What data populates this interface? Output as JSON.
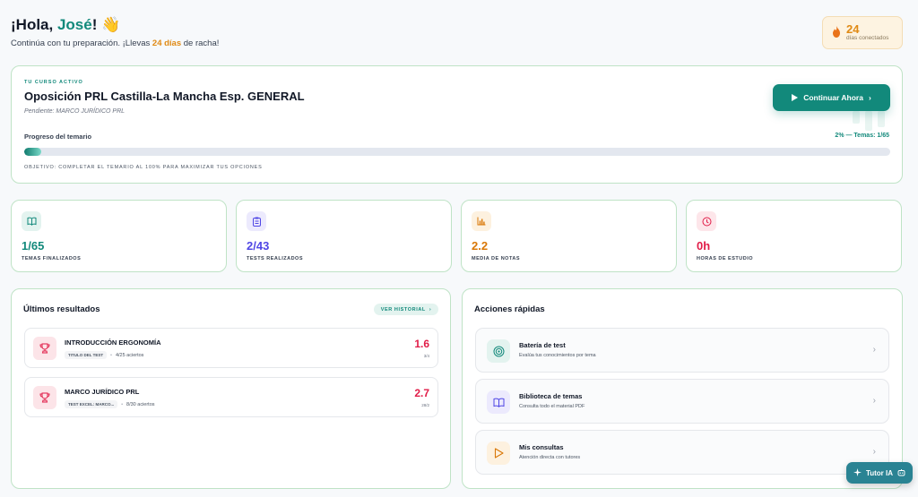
{
  "header": {
    "greeting_prefix": "¡Hola, ",
    "user_name": "José",
    "greeting_suffix": "!",
    "wave_emoji": "👋",
    "subtitle_prefix": "Continúa con tu preparación. ¡Llevas ",
    "streak_text": "24 días",
    "subtitle_suffix": " de racha!"
  },
  "streak_badge": {
    "icon": "flame-icon",
    "value": "24",
    "label": "días conectados"
  },
  "course": {
    "tag": "TU CURSO ACTIVO",
    "title": "Oposición PRL Castilla-La Mancha Esp. GENERAL",
    "pending": "Pendiente: MARCO JURÍDICO PRL",
    "cta_label": "Continuar Ahora",
    "progress_label": "Progreso del temario",
    "progress_summary": "2% — Temas: 1/65",
    "progress_fraction": 0.02,
    "objective": "OBJETIVO: COMPLETAR EL TEMARIO AL 100% PARA MAXIMIZAR TUS OPCIONES"
  },
  "stats": [
    {
      "value": "1/65",
      "label": "TEMAS FINALIZADOS",
      "icon": "book-icon",
      "color": "#12897b",
      "bg": "#e3f3ef"
    },
    {
      "value": "2/43",
      "label": "TESTS REALIZADOS",
      "icon": "clipboard-icon",
      "color": "#4f46e5",
      "bg": "#eceafd"
    },
    {
      "value": "2.2",
      "label": "MEDIA DE NOTAS",
      "icon": "bar-chart-icon",
      "color": "#d97706",
      "bg": "#fdf1df"
    },
    {
      "value": "0h",
      "label": "HORAS DE ESTUDIO",
      "icon": "clock-icon",
      "color": "#e11d48",
      "bg": "#fde6ea"
    }
  ],
  "results": {
    "title": "Últimos resultados",
    "history_label": "VER HISTORIAL",
    "items": [
      {
        "title": "INTRODUCCIÓN ERGONOMÍA",
        "tag": "TITULO DEL TEST",
        "hits": "4/25 aciertos",
        "score": "1.6",
        "sub": "3/4"
      },
      {
        "title": "MARCO JURÍDICO PRL",
        "tag": "TEST EXCEL: MARCO...",
        "hits": "8/30 aciertos",
        "score": "2.7",
        "sub": "28/2"
      }
    ]
  },
  "actions": {
    "title": "Acciones rápidas",
    "items": [
      {
        "title": "Batería de test",
        "sub": "Evalúa tus conocimientos por tema",
        "icon": "target-icon",
        "color": "#12897b",
        "bg": "#e3f3ef"
      },
      {
        "title": "Biblioteca de temas",
        "sub": "Consulta todo el material PDF",
        "icon": "open-book-icon",
        "color": "#4f46e5",
        "bg": "#eceafd"
      },
      {
        "title": "Mis consultas",
        "sub": "Atención directa con tutores",
        "icon": "play-icon",
        "color": "#d97706",
        "bg": "#fdf1df"
      }
    ]
  },
  "tutor": {
    "label": "Tutor IA"
  }
}
